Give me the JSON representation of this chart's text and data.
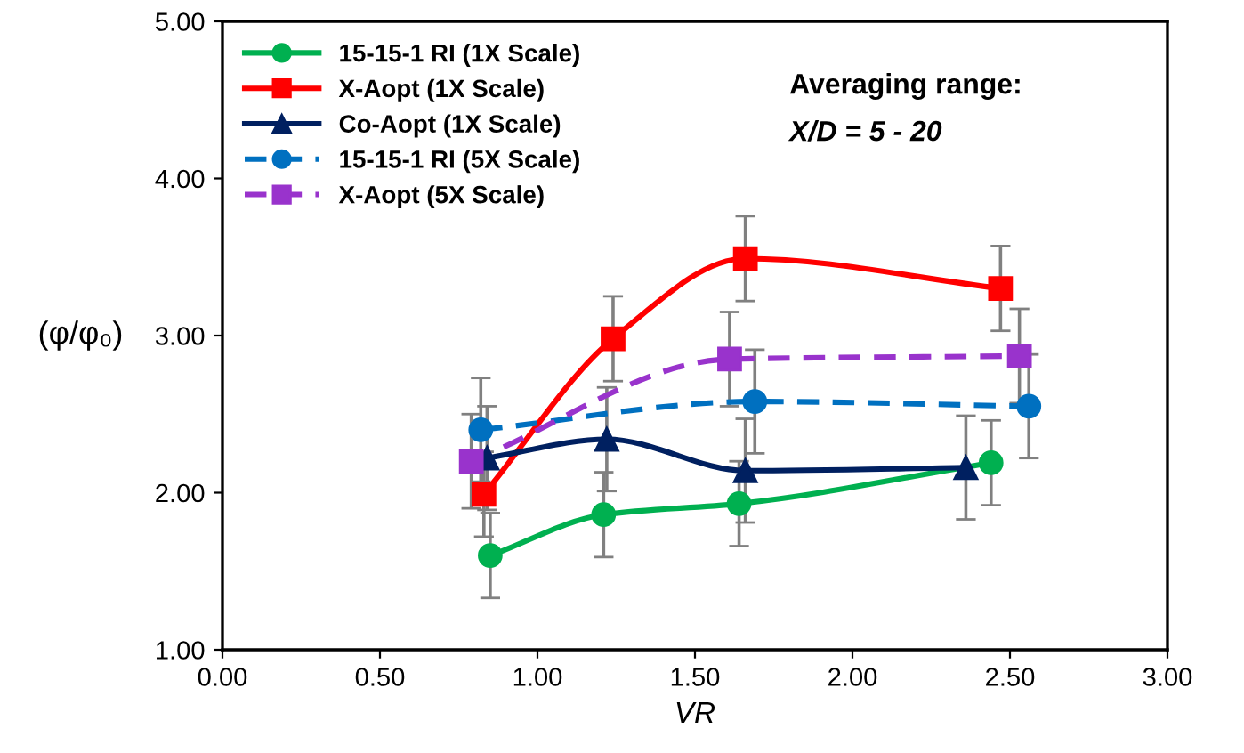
{
  "chart_data": {
    "type": "line",
    "xlabel": "VR",
    "ylabel": "(φ/φ₀)",
    "xlim": [
      0,
      3
    ],
    "xticks": [
      {
        "value": 0,
        "label": "0.00"
      },
      {
        "value": 0.5,
        "label": "0.50"
      },
      {
        "value": 1,
        "label": "1.00"
      },
      {
        "value": 1.5,
        "label": "1.50"
      },
      {
        "value": 2,
        "label": "2.00"
      },
      {
        "value": 2.5,
        "label": "2.50"
      },
      {
        "value": 3,
        "label": "3.00"
      }
    ],
    "ylim": [
      1,
      5
    ],
    "yticks": [
      {
        "value": 1,
        "label": "1.00"
      },
      {
        "value": 2,
        "label": "2.00"
      },
      {
        "value": 3,
        "label": "3.00"
      },
      {
        "value": 4,
        "label": "4.00"
      },
      {
        "value": 5,
        "label": "5.00"
      }
    ],
    "grid": false,
    "legend": "top left",
    "annotations": [
      "Averaging range:",
      "X/D = 5 - 20"
    ],
    "series": [
      {
        "name": "15-15-1 RI (1X Scale)",
        "color": "#00b050",
        "marker": "circle",
        "line_style": "solid",
        "x": [
          0.85,
          1.21,
          1.64,
          2.44
        ],
        "values": [
          1.6,
          1.86,
          1.93,
          2.19
        ],
        "errors": [
          0.27,
          0.27,
          0.27,
          0.27
        ]
      },
      {
        "name": "X-Aopt (1X Scale)",
        "color": "#ff0000",
        "marker": "square",
        "line_style": "solid",
        "x": [
          0.83,
          1.24,
          1.66,
          2.47
        ],
        "values": [
          1.99,
          2.98,
          3.49,
          3.3
        ],
        "errors": [
          0.27,
          0.27,
          0.27,
          0.27
        ]
      },
      {
        "name": "Co-Aopt (1X Scale)",
        "color": "#002060",
        "marker": "triangle",
        "line_style": "solid",
        "x": [
          0.84,
          1.22,
          1.66,
          2.36
        ],
        "values": [
          2.22,
          2.34,
          2.14,
          2.16
        ],
        "errors": [
          0.33,
          0.33,
          0.33,
          0.33
        ]
      },
      {
        "name": "15-15-1 RI (5X Scale)",
        "color": "#0070c0",
        "marker": "circle",
        "line_style": "dashed",
        "x": [
          0.82,
          1.69,
          2.56
        ],
        "values": [
          2.4,
          2.58,
          2.55
        ],
        "errors": [
          0.33,
          0.33,
          0.33
        ]
      },
      {
        "name": "X-Aopt (5X Scale)",
        "color": "#9933cc",
        "marker": "square",
        "line_style": "dashed",
        "x": [
          0.79,
          1.61,
          2.53
        ],
        "values": [
          2.2,
          2.85,
          2.87
        ],
        "errors": [
          0.3,
          0.3,
          0.3
        ]
      }
    ]
  }
}
